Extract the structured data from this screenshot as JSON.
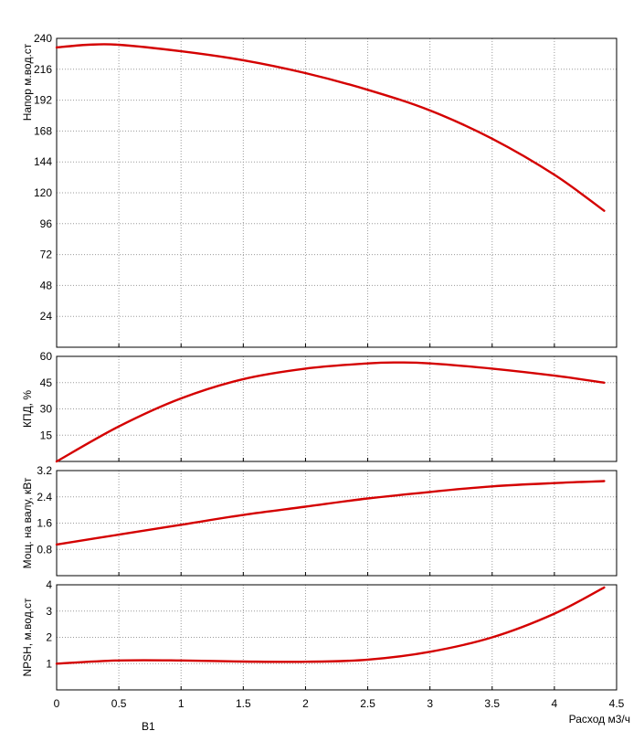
{
  "chart_data": {
    "type": "line",
    "x_axis": {
      "label": "Расход м3/ч",
      "ticks": [
        "0",
        "0.5",
        "1",
        "1.5",
        "2",
        "2.5",
        "3",
        "3.5",
        "4",
        "4.5"
      ],
      "range": [
        0,
        4.5
      ]
    },
    "panels": [
      {
        "id": "head",
        "ylabel": "Напор м.вод.ст",
        "ylim": [
          0,
          240
        ],
        "yticks": [
          "24",
          "48",
          "72",
          "96",
          "120",
          "144",
          "168",
          "192",
          "216",
          "240"
        ],
        "series": [
          {
            "x": [
              0,
              0.25,
              0.5,
              1,
              1.5,
              2,
              2.5,
              3,
              3.5,
              4,
              4.4
            ],
            "y": [
              233,
              235,
              235,
              230,
              223,
              213,
              200,
              184,
              162,
              134,
              106
            ]
          }
        ]
      },
      {
        "id": "efficiency",
        "ylabel": "КПД, %",
        "ylim": [
          0,
          60
        ],
        "yticks": [
          "15",
          "30",
          "45",
          "60"
        ],
        "series": [
          {
            "x": [
              0,
              0.5,
              1,
              1.5,
              2,
              2.5,
              2.75,
              3,
              3.5,
              4,
              4.4
            ],
            "y": [
              0,
              20,
              36,
              47,
              53,
              56,
              56.5,
              56,
              53,
              49,
              45
            ]
          }
        ]
      },
      {
        "id": "power",
        "ylabel": "Мощ. на валу, кВт",
        "ylim": [
          0,
          3.2
        ],
        "yticks": [
          "0.8",
          "1.6",
          "2.4",
          "3.2"
        ],
        "series": [
          {
            "x": [
              0,
              0.5,
              1,
              1.5,
              2,
              2.5,
              3,
              3.5,
              4,
              4.4
            ],
            "y": [
              0.95,
              1.25,
              1.55,
              1.85,
              2.1,
              2.35,
              2.55,
              2.72,
              2.82,
              2.88
            ]
          }
        ]
      },
      {
        "id": "npsh",
        "ylabel": "NPSH, м.вод.ст",
        "ylim": [
          0,
          4
        ],
        "yticks": [
          "1",
          "2",
          "3",
          "4"
        ],
        "series": [
          {
            "x": [
              0,
              0.5,
              1,
              1.5,
              2,
              2.5,
              3,
              3.5,
              4,
              4.4
            ],
            "y": [
              1.0,
              1.12,
              1.12,
              1.08,
              1.07,
              1.15,
              1.45,
              2.0,
              2.9,
              3.9
            ]
          }
        ]
      }
    ],
    "series_color": "#d40000",
    "grid": true,
    "footer_text": "В1"
  }
}
